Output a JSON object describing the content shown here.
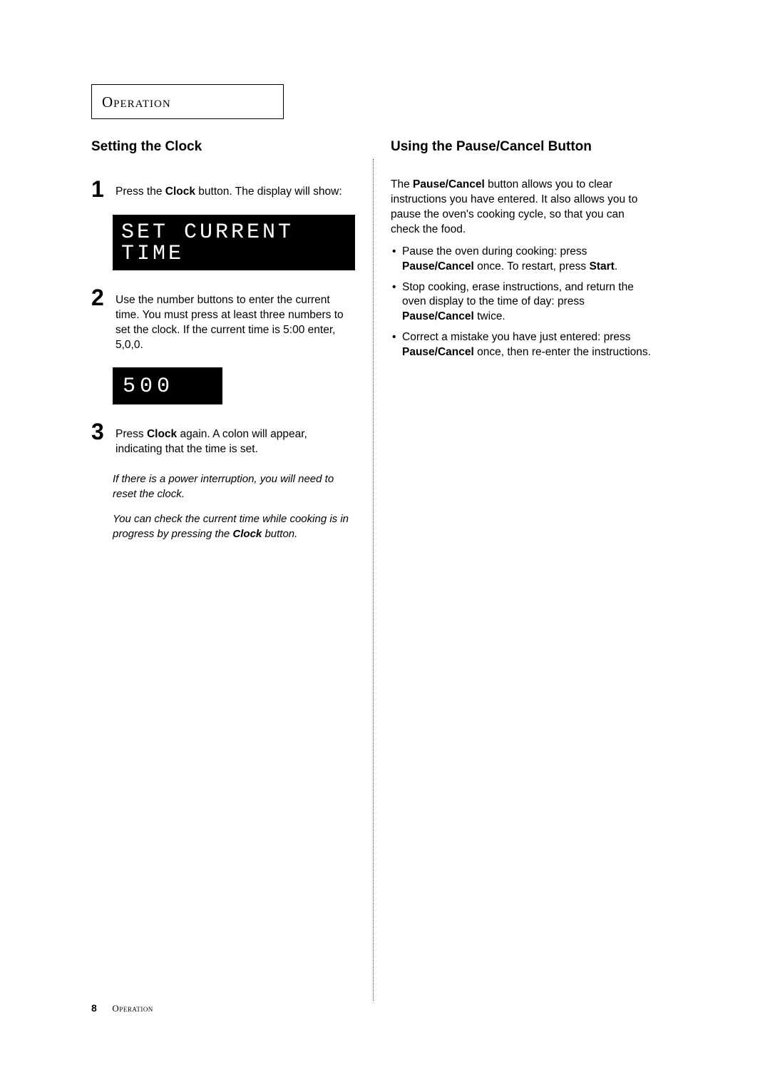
{
  "section_header": "Operation",
  "left": {
    "heading": "Setting the Clock",
    "steps": [
      {
        "num": "1",
        "pre": "Press the ",
        "bold1": "Clock",
        "post": " button.  The display will show:"
      },
      {
        "num": "2",
        "text": "Use the number buttons to enter the current time. You must press at least three numbers to set the clock. If the current time is 5:00 enter, 5,0,0."
      },
      {
        "num": "3",
        "pre": "Press ",
        "bold1": "Clock",
        "post": " again. A colon will appear, indicating that the time is set."
      }
    ],
    "lcd1": "SET CURRENT TIME",
    "lcd2": "500",
    "notes": {
      "n1": "If there is a power interruption, you will need to reset the clock.",
      "n2_pre": "You can check the current time while cooking is in progress by pressing the ",
      "n2_bold": "Clock",
      "n2_post": "  button."
    }
  },
  "right": {
    "heading": "Using the Pause/Cancel Button",
    "intro_pre": "The ",
    "intro_bold": "Pause/Cancel",
    "intro_post": " button allows you to clear instructions you have entered.  It also allows you to pause the oven's cooking cycle, so that you can check the food.",
    "bullets": [
      {
        "pre": "Pause the oven during cooking: press ",
        "b1": "Pause/Cancel",
        "mid": " once. To restart, press ",
        "b2": "Start",
        "post": "."
      },
      {
        "pre": "Stop cooking, erase instructions, and return the oven display to the time of day: press ",
        "b1": "Pause/Cancel",
        "post": " twice."
      },
      {
        "pre": "Correct a mistake you have just entered: press ",
        "b1": "Pause/Cancel",
        "post": " once, then re-enter the instructions."
      }
    ]
  },
  "footer": {
    "page_num": "8",
    "section": "Operation"
  },
  "colors": {
    "text": "#000000",
    "background": "#ffffff",
    "lcd_bg": "#000000",
    "lcd_fg": "#ffffff",
    "divider": "#444444"
  }
}
